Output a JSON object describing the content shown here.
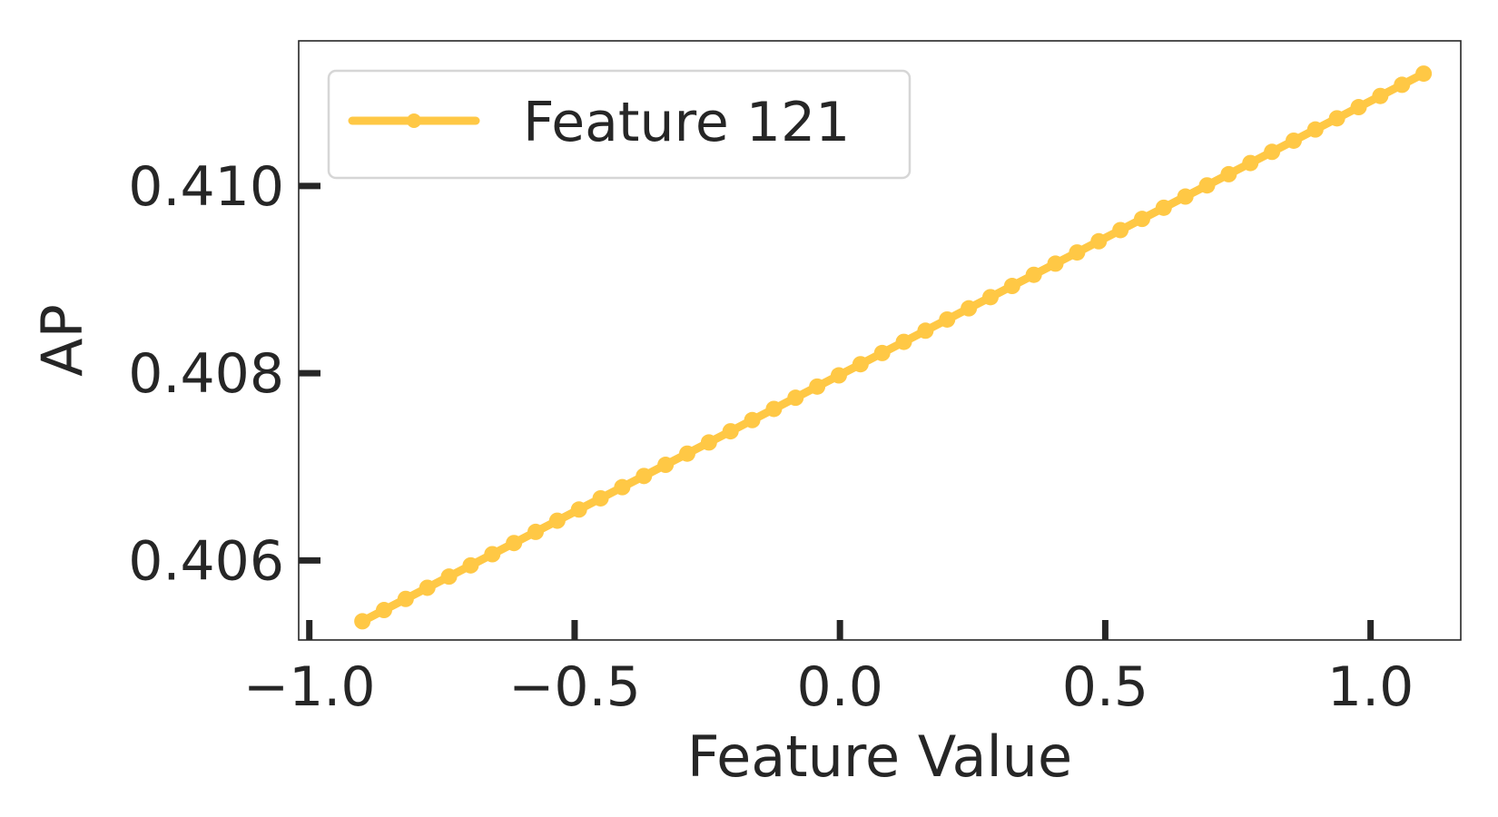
{
  "chart_data": {
    "type": "line",
    "title": "",
    "xlabel": "Feature Value",
    "ylabel": "AP",
    "xlim": [
      -1.02,
      1.17
    ],
    "ylim": [
      0.40515,
      0.41155
    ],
    "x_ticks": [
      -1.0,
      -0.5,
      0.0,
      0.5,
      1.0
    ],
    "x_tick_labels": [
      "−1.0",
      "−0.5",
      "0.0",
      "0.5",
      "1.0"
    ],
    "y_ticks": [
      0.406,
      0.408,
      0.41
    ],
    "y_tick_labels": [
      "0.406",
      "0.408",
      "0.410"
    ],
    "grid": false,
    "legend": {
      "placement": "top-left",
      "entries": [
        "Feature 121"
      ]
    },
    "series": [
      {
        "name": "Feature 121",
        "color": "#ffc845",
        "marker": "circle",
        "x_start": -0.9,
        "x_end": 1.1,
        "y_start": 0.40535,
        "y_end": 0.4112,
        "num_points": 50
      }
    ]
  }
}
